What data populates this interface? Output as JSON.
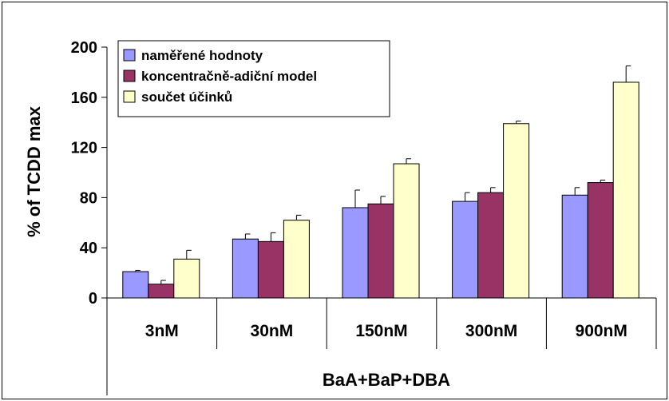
{
  "chart_data": {
    "type": "bar",
    "categories": [
      "3nM",
      "30nM",
      "150nM",
      "300nM",
      "900nM"
    ],
    "group_label": "BaA+BaP+DBA",
    "ylabel": "% of TCDD max",
    "ylim": [
      0,
      200
    ],
    "yticks": [
      0,
      40,
      80,
      120,
      160,
      200
    ],
    "grid": false,
    "legend_position": "top-left",
    "series": [
      {
        "name": "naměřené hodnoty",
        "color": "#9999FF",
        "values": [
          21,
          47,
          72,
          77,
          82
        ],
        "errors": [
          1,
          4,
          14,
          7,
          6
        ]
      },
      {
        "name": "koncentračně-adiční model",
        "color": "#993366",
        "values": [
          11,
          45,
          75,
          84,
          92
        ],
        "errors": [
          3,
          7,
          6,
          4,
          2
        ]
      },
      {
        "name": "součet účinků",
        "color": "#FFFFCC",
        "values": [
          31,
          62,
          107,
          139,
          172
        ],
        "errors": [
          7,
          4,
          4,
          2,
          13
        ]
      }
    ]
  }
}
